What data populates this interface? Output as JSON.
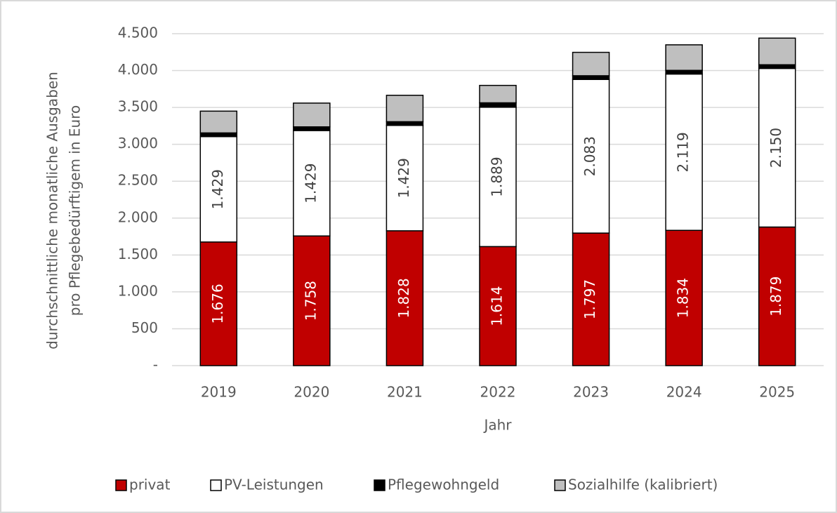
{
  "chart_data": {
    "type": "bar",
    "stacked": true,
    "ylabel": [
      "durchschnittliche monatliche Ausgaben",
      "pro Pflegebedürftigem in Euro"
    ],
    "xlabel": "Jahr",
    "categories": [
      "2019",
      "2020",
      "2021",
      "2022",
      "2023",
      "2024",
      "2025"
    ],
    "series": [
      {
        "name": "privat",
        "color": "#c00000",
        "values": [
          1676,
          1758,
          1828,
          1614,
          1797,
          1834,
          1879
        ],
        "value_labels": [
          "1.676",
          "1.758",
          "1.828",
          "1.614",
          "1.797",
          "1.834",
          "1.879"
        ]
      },
      {
        "name": "PV-Leistungen",
        "color": "#ffffff",
        "values": [
          1429,
          1429,
          1429,
          1889,
          2083,
          2119,
          2150
        ],
        "value_labels": [
          "1.429",
          "1.429",
          "1.429",
          "1.889",
          "2.083",
          "2.119",
          "2.150"
        ]
      },
      {
        "name": "Pflegewohngeld",
        "color": "#000000",
        "values": [
          50,
          50,
          50,
          60,
          50,
          50,
          50
        ]
      },
      {
        "name": "Sozialhilfe (kalibriert)",
        "color": "#bfbfbf",
        "values": [
          295,
          322,
          358,
          236,
          317,
          346,
          361
        ]
      }
    ],
    "ylim": [
      0,
      4500
    ],
    "yticks": [
      {
        "value": 0,
        "label": "-"
      },
      500,
      {
        "value": 1000,
        "label": "1.000"
      },
      {
        "value": 1500,
        "label": "1.500"
      },
      {
        "value": 2000,
        "label": "2.000"
      },
      {
        "value": 2500,
        "label": "2.500"
      },
      {
        "value": 3000,
        "label": "3.000"
      },
      {
        "value": 3500,
        "label": "3.500"
      },
      {
        "value": 4000,
        "label": "4.000"
      },
      {
        "value": 4500,
        "label": "4.500"
      }
    ],
    "grid": true,
    "legend": "bottom"
  }
}
